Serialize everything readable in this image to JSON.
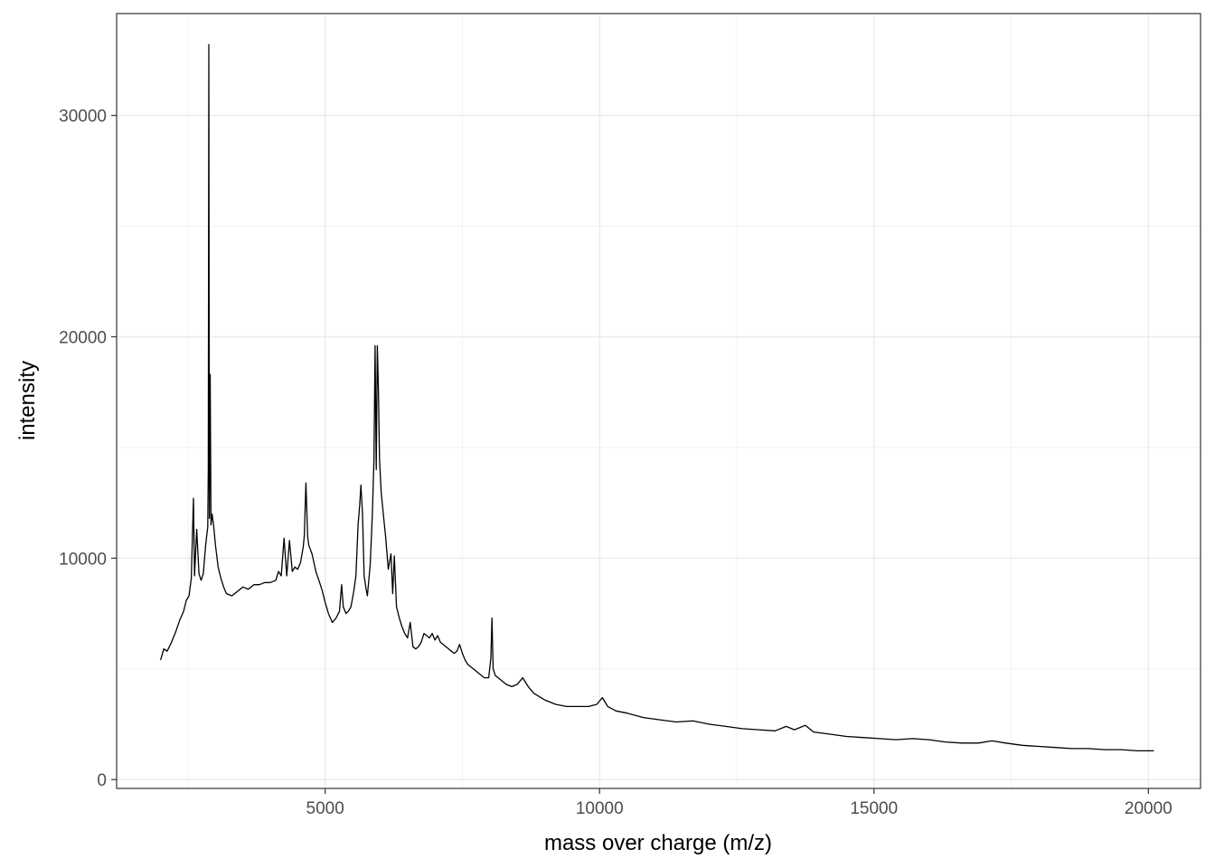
{
  "chart_data": {
    "type": "line",
    "title": "",
    "xlabel": "mass over charge (m/z)",
    "ylabel": "intensity",
    "xlim": [
      1200,
      20950
    ],
    "ylim": [
      -400,
      34600
    ],
    "x_ticks": [
      5000,
      10000,
      15000,
      20000
    ],
    "x_tick_labels": [
      "5000",
      "10000",
      "15000",
      "20000"
    ],
    "y_ticks": [
      0,
      10000,
      20000,
      30000
    ],
    "y_tick_labels": [
      "0",
      "10000",
      "20000",
      "30000"
    ],
    "grid": true,
    "legend": "none",
    "series": [
      {
        "color": "#000000",
        "points": [
          [
            2000,
            5400
          ],
          [
            2060,
            5900
          ],
          [
            2120,
            5800
          ],
          [
            2200,
            6200
          ],
          [
            2280,
            6700
          ],
          [
            2350,
            7200
          ],
          [
            2420,
            7600
          ],
          [
            2470,
            8100
          ],
          [
            2520,
            8300
          ],
          [
            2560,
            9100
          ],
          [
            2600,
            12700
          ],
          [
            2620,
            9200
          ],
          [
            2660,
            11300
          ],
          [
            2700,
            9300
          ],
          [
            2740,
            9000
          ],
          [
            2780,
            9300
          ],
          [
            2820,
            10500
          ],
          [
            2840,
            11000
          ],
          [
            2860,
            11400
          ],
          [
            2870,
            14000
          ],
          [
            2880,
            33200
          ],
          [
            2890,
            11800
          ],
          [
            2905,
            18300
          ],
          [
            2920,
            11500
          ],
          [
            2940,
            12000
          ],
          [
            2970,
            11400
          ],
          [
            3000,
            10600
          ],
          [
            3050,
            9600
          ],
          [
            3100,
            9100
          ],
          [
            3150,
            8700
          ],
          [
            3200,
            8400
          ],
          [
            3300,
            8300
          ],
          [
            3400,
            8500
          ],
          [
            3500,
            8700
          ],
          [
            3600,
            8600
          ],
          [
            3700,
            8800
          ],
          [
            3800,
            8800
          ],
          [
            3900,
            8900
          ],
          [
            4000,
            8900
          ],
          [
            4100,
            9000
          ],
          [
            4150,
            9400
          ],
          [
            4200,
            9200
          ],
          [
            4250,
            10900
          ],
          [
            4300,
            9200
          ],
          [
            4350,
            10800
          ],
          [
            4400,
            9400
          ],
          [
            4450,
            9600
          ],
          [
            4500,
            9500
          ],
          [
            4550,
            9800
          ],
          [
            4600,
            10500
          ],
          [
            4620,
            11000
          ],
          [
            4650,
            13400
          ],
          [
            4680,
            11000
          ],
          [
            4700,
            10600
          ],
          [
            4760,
            10200
          ],
          [
            4830,
            9400
          ],
          [
            4900,
            8900
          ],
          [
            4950,
            8500
          ],
          [
            5000,
            8000
          ],
          [
            5060,
            7500
          ],
          [
            5130,
            7100
          ],
          [
            5200,
            7300
          ],
          [
            5260,
            7600
          ],
          [
            5300,
            8800
          ],
          [
            5330,
            7800
          ],
          [
            5380,
            7500
          ],
          [
            5420,
            7600
          ],
          [
            5470,
            7800
          ],
          [
            5520,
            8500
          ],
          [
            5560,
            9200
          ],
          [
            5600,
            11500
          ],
          [
            5630,
            12400
          ],
          [
            5650,
            13300
          ],
          [
            5680,
            12000
          ],
          [
            5710,
            9200
          ],
          [
            5740,
            8700
          ],
          [
            5770,
            8300
          ],
          [
            5820,
            9700
          ],
          [
            5860,
            12000
          ],
          [
            5890,
            14500
          ],
          [
            5910,
            19600
          ],
          [
            5930,
            14000
          ],
          [
            5950,
            19600
          ],
          [
            5970,
            17600
          ],
          [
            5990,
            14500
          ],
          [
            6020,
            13000
          ],
          [
            6060,
            12000
          ],
          [
            6100,
            11000
          ],
          [
            6150,
            9500
          ],
          [
            6200,
            10200
          ],
          [
            6230,
            8400
          ],
          [
            6260,
            10100
          ],
          [
            6300,
            7800
          ],
          [
            6350,
            7300
          ],
          [
            6400,
            6900
          ],
          [
            6450,
            6600
          ],
          [
            6500,
            6400
          ],
          [
            6550,
            7100
          ],
          [
            6600,
            6000
          ],
          [
            6650,
            5900
          ],
          [
            6700,
            6000
          ],
          [
            6750,
            6200
          ],
          [
            6800,
            6600
          ],
          [
            6850,
            6500
          ],
          [
            6900,
            6400
          ],
          [
            6950,
            6600
          ],
          [
            7000,
            6300
          ],
          [
            7050,
            6500
          ],
          [
            7100,
            6200
          ],
          [
            7150,
            6100
          ],
          [
            7200,
            6000
          ],
          [
            7250,
            5900
          ],
          [
            7300,
            5800
          ],
          [
            7350,
            5700
          ],
          [
            7400,
            5800
          ],
          [
            7450,
            6100
          ],
          [
            7500,
            5700
          ],
          [
            7550,
            5400
          ],
          [
            7600,
            5200
          ],
          [
            7700,
            5000
          ],
          [
            7800,
            4800
          ],
          [
            7900,
            4600
          ],
          [
            7980,
            4600
          ],
          [
            8020,
            5500
          ],
          [
            8040,
            7300
          ],
          [
            8060,
            5000
          ],
          [
            8100,
            4700
          ],
          [
            8200,
            4500
          ],
          [
            8300,
            4300
          ],
          [
            8400,
            4200
          ],
          [
            8500,
            4300
          ],
          [
            8600,
            4600
          ],
          [
            8700,
            4200
          ],
          [
            8800,
            3900
          ],
          [
            9000,
            3600
          ],
          [
            9200,
            3400
          ],
          [
            9400,
            3300
          ],
          [
            9600,
            3300
          ],
          [
            9800,
            3300
          ],
          [
            9950,
            3400
          ],
          [
            10050,
            3700
          ],
          [
            10150,
            3300
          ],
          [
            10300,
            3100
          ],
          [
            10500,
            3000
          ],
          [
            10800,
            2800
          ],
          [
            11100,
            2700
          ],
          [
            11400,
            2600
          ],
          [
            11700,
            2650
          ],
          [
            12000,
            2500
          ],
          [
            12300,
            2400
          ],
          [
            12600,
            2300
          ],
          [
            12900,
            2250
          ],
          [
            13200,
            2200
          ],
          [
            13400,
            2400
          ],
          [
            13550,
            2250
          ],
          [
            13750,
            2450
          ],
          [
            13900,
            2150
          ],
          [
            14200,
            2050
          ],
          [
            14500,
            1950
          ],
          [
            14800,
            1900
          ],
          [
            15100,
            1850
          ],
          [
            15400,
            1800
          ],
          [
            15700,
            1850
          ],
          [
            16000,
            1800
          ],
          [
            16300,
            1700
          ],
          [
            16600,
            1650
          ],
          [
            16900,
            1650
          ],
          [
            17150,
            1750
          ],
          [
            17400,
            1650
          ],
          [
            17700,
            1550
          ],
          [
            18000,
            1500
          ],
          [
            18300,
            1450
          ],
          [
            18600,
            1400
          ],
          [
            18900,
            1400
          ],
          [
            19200,
            1350
          ],
          [
            19500,
            1350
          ],
          [
            19800,
            1300
          ],
          [
            20100,
            1300
          ]
        ]
      }
    ]
  }
}
